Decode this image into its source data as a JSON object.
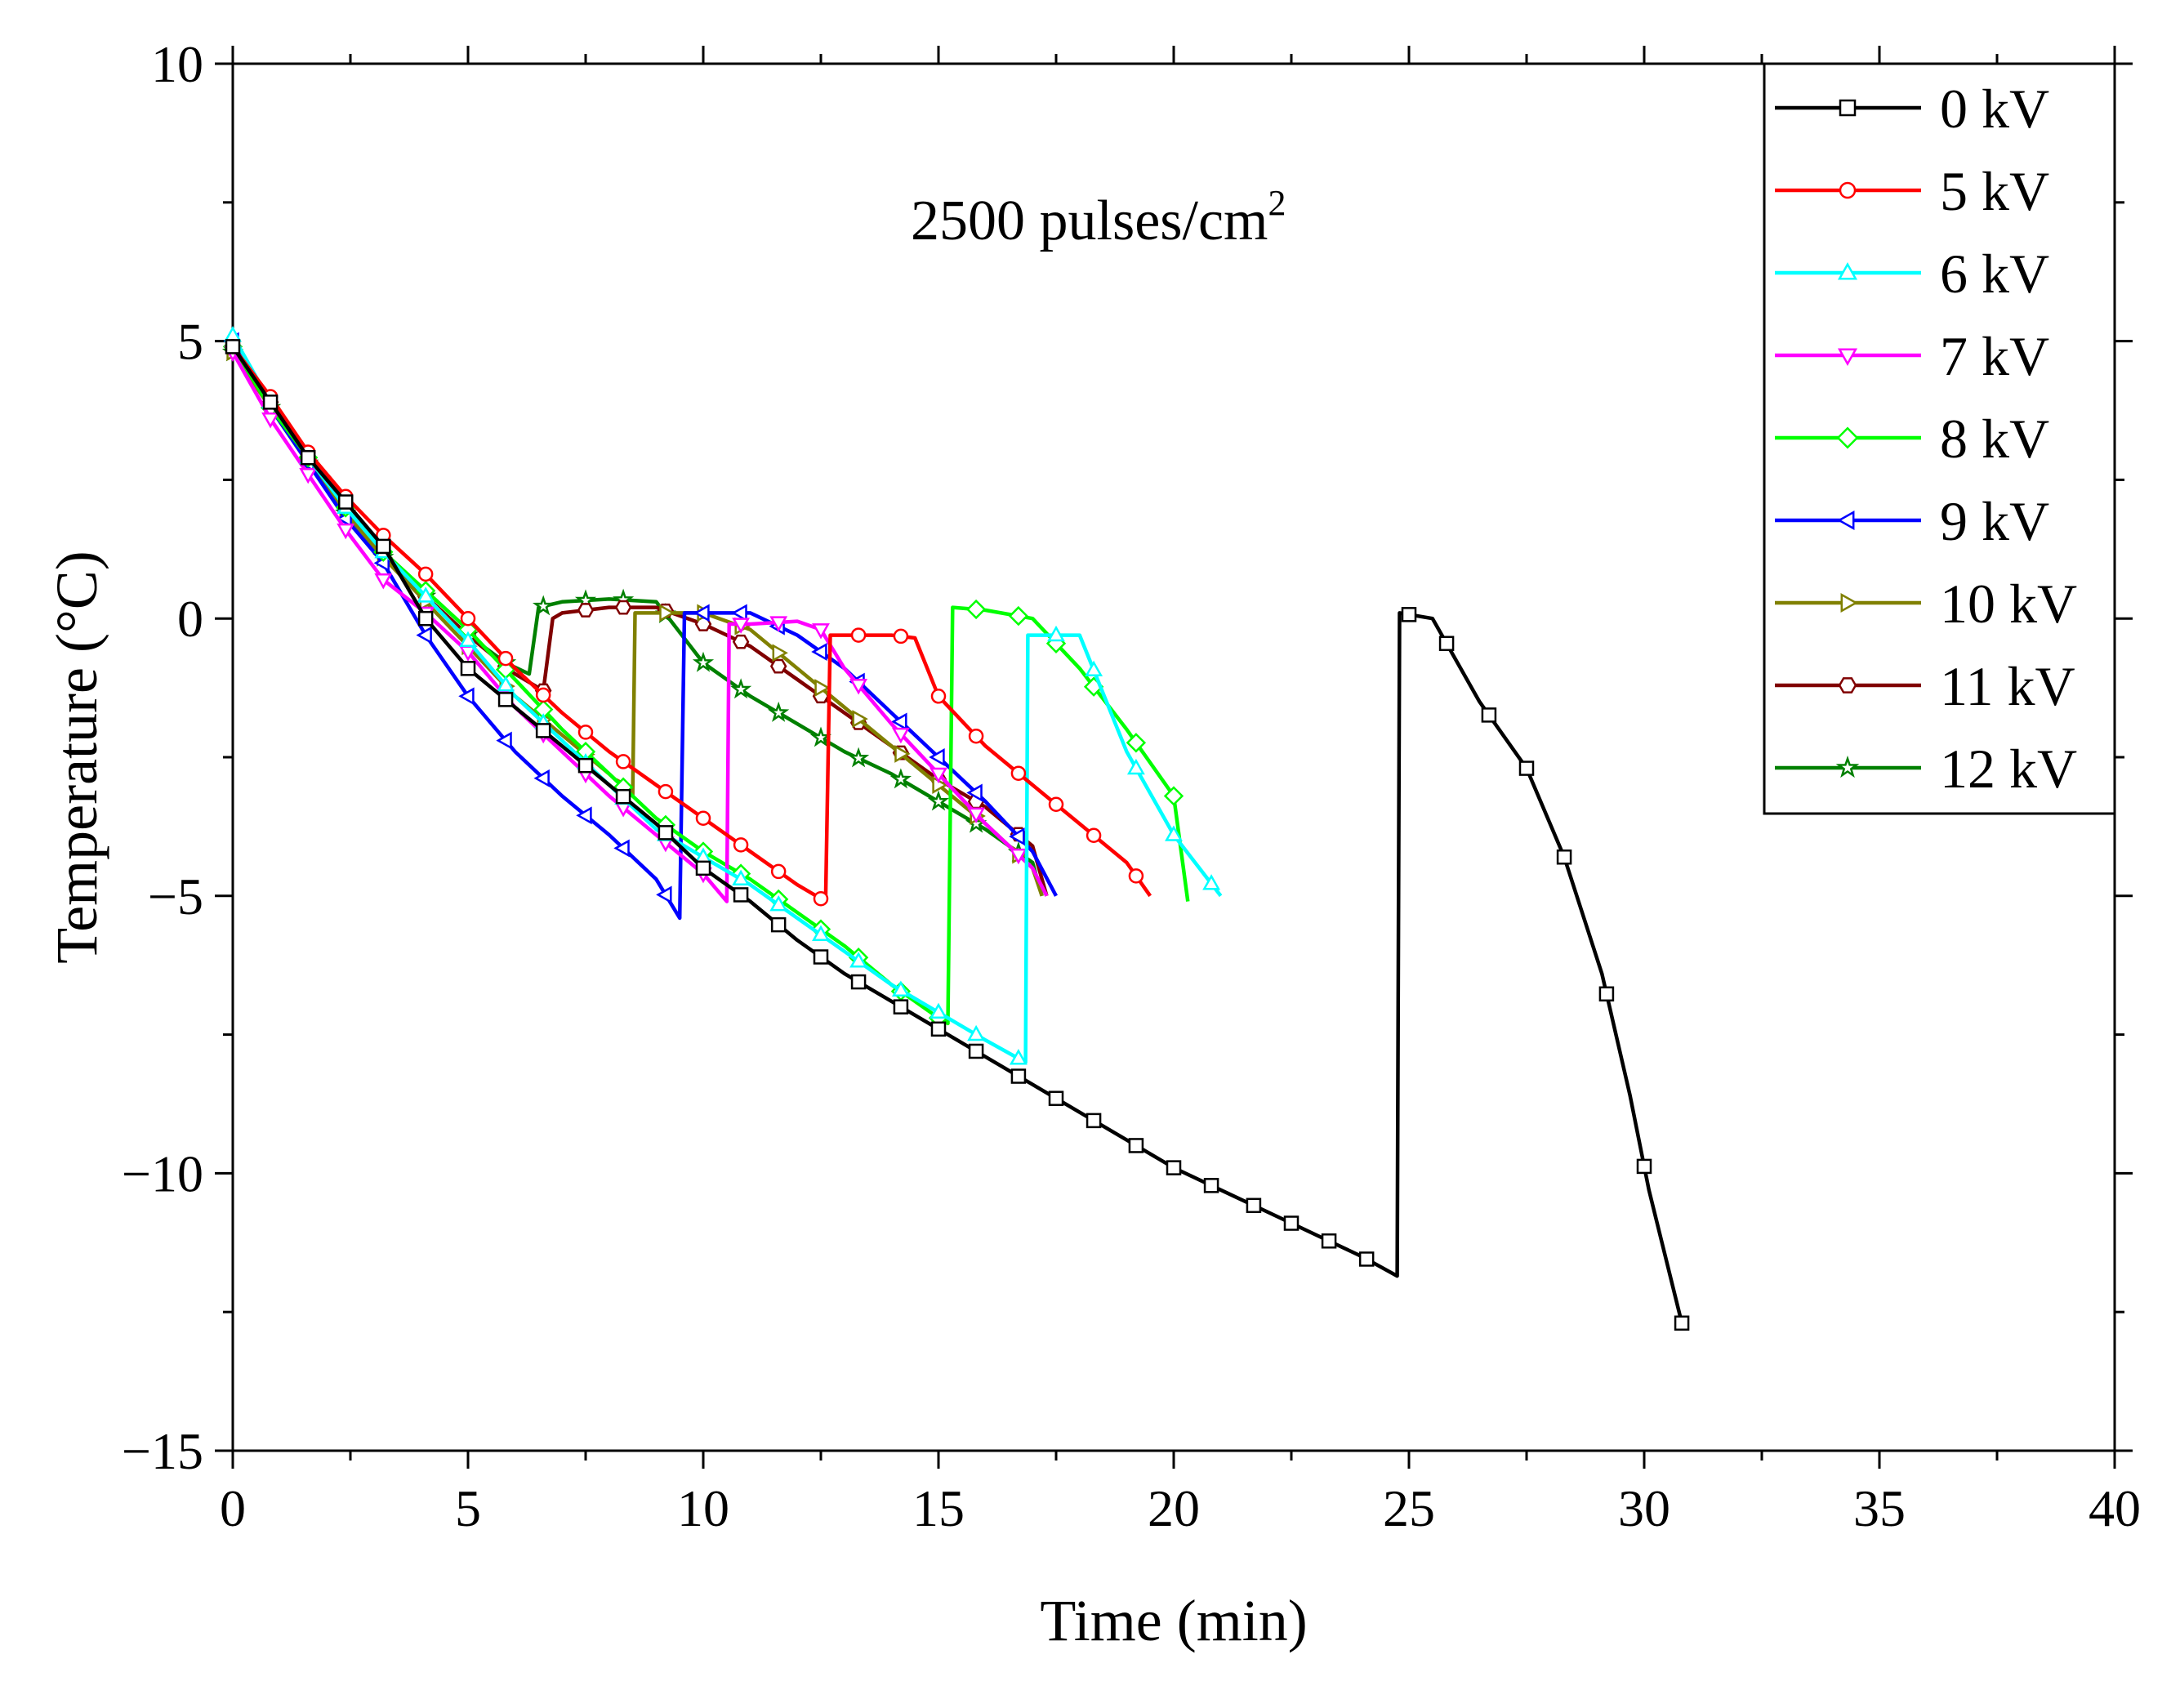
{
  "chart_data": {
    "type": "line",
    "title": "",
    "annotation": "2500 pulses/cm",
    "annotation_superscript": "2",
    "xlabel": "Time (min)",
    "ylabel": "Temperature (°C)",
    "xlim": [
      0,
      40
    ],
    "ylim": [
      -15,
      10
    ],
    "xticks": [
      0,
      5,
      10,
      15,
      20,
      25,
      30,
      35,
      40
    ],
    "xtick_labels": [
      "0",
      "5",
      "10",
      "15",
      "20",
      "25",
      "30",
      "35",
      "40"
    ],
    "yticks": [
      -15,
      -10,
      -5,
      0,
      5,
      10
    ],
    "ytick_labels": [
      "−15",
      "−10",
      "−5",
      "0",
      "5",
      "10"
    ],
    "grid": false,
    "legend_position": "top-right",
    "series": [
      {
        "name": "0 kV",
        "color": "#000000",
        "marker": "square",
        "x": [
          0,
          0.8,
          1.6,
          2.4,
          3.2,
          4.1,
          5,
          6,
          7,
          8,
          9,
          10,
          11,
          12,
          13,
          14,
          15,
          16,
          17,
          18,
          19,
          20,
          21,
          22,
          23,
          24,
          24.75,
          24.8,
          25.5,
          26.5,
          27.5,
          28.3,
          29.1,
          29.7,
          30.1,
          30.8
        ],
        "y": [
          4.9,
          3.9,
          2.9,
          2.1,
          1.3,
          0.0,
          -0.9,
          -1.6,
          -2.3,
          -3.0,
          -3.7,
          -4.5,
          -5.1,
          -5.8,
          -6.4,
          -6.9,
          -7.4,
          -7.9,
          -8.4,
          -8.9,
          -9.4,
          -9.9,
          -10.3,
          -10.7,
          -11.1,
          -11.5,
          -11.85,
          0.1,
          0.0,
          -1.5,
          -2.7,
          -4.3,
          -6.4,
          -8.6,
          -10.3,
          -12.7
        ],
        "marker_x": [
          0,
          0.8,
          1.6,
          2.4,
          3.2,
          4.1,
          5,
          5.8,
          6.6,
          7.5,
          8.3,
          9.2,
          10,
          10.8,
          11.6,
          12.5,
          13.3,
          14.2,
          15,
          15.8,
          16.7,
          17.5,
          18.3,
          19.2,
          20,
          20.8,
          21.7,
          22.5,
          23.3,
          24.1,
          25,
          25.8,
          26.7,
          27.5,
          28.3,
          29.2,
          30,
          30.8
        ]
      },
      {
        "name": "5 kV",
        "color": "#ff0000",
        "marker": "circle",
        "x": [
          0,
          0.8,
          1.6,
          2.4,
          3.2,
          4.1,
          5,
          6,
          7,
          8,
          9,
          10,
          11,
          12,
          12.6,
          12.7,
          13,
          14,
          14.5,
          15,
          16,
          17,
          18,
          19,
          19.5
        ],
        "y": [
          4.9,
          4.0,
          3.0,
          2.2,
          1.5,
          0.8,
          0.0,
          -0.9,
          -1.7,
          -2.4,
          -3.0,
          -3.6,
          -4.2,
          -4.8,
          -5.1,
          -0.3,
          -0.3,
          -0.3,
          -0.35,
          -1.4,
          -2.3,
          -3.0,
          -3.7,
          -4.4,
          -5.0
        ],
        "marker_x": [
          0,
          0.8,
          1.6,
          2.4,
          3.2,
          4.1,
          5,
          5.8,
          6.6,
          7.5,
          8.3,
          9.2,
          10,
          10.8,
          11.6,
          12.5,
          13.3,
          14.2,
          15,
          15.8,
          16.7,
          17.5,
          18.3,
          19.2
        ]
      },
      {
        "name": "6 kV",
        "color": "#00ffff",
        "marker": "triangle-up",
        "x": [
          0,
          0.8,
          1.6,
          2.4,
          3.2,
          4.1,
          5,
          6,
          7,
          8,
          9,
          10,
          11,
          12,
          13,
          14,
          15,
          16,
          16.85,
          16.9,
          17.5,
          18,
          19,
          20,
          21
        ],
        "y": [
          5.1,
          3.9,
          2.9,
          2.0,
          1.2,
          0.4,
          -0.4,
          -1.4,
          -2.2,
          -3.0,
          -3.8,
          -4.3,
          -4.8,
          -5.4,
          -6.0,
          -6.6,
          -7.1,
          -7.6,
          -8.0,
          -0.3,
          -0.3,
          -0.3,
          -2.4,
          -3.9,
          -5.0
        ],
        "marker_x": [
          0,
          0.8,
          1.6,
          2.4,
          3.2,
          4.1,
          5,
          5.8,
          6.6,
          7.5,
          8.3,
          9.2,
          10,
          10.8,
          11.6,
          12.5,
          13.3,
          14.2,
          15,
          15.8,
          16.7,
          17.5,
          18.3,
          19.2,
          20,
          20.8
        ]
      },
      {
        "name": "7 kV",
        "color": "#ff00ff",
        "marker": "triangle-down",
        "x": [
          0,
          0.8,
          1.6,
          2.4,
          3.2,
          4.1,
          5,
          6,
          7,
          8,
          9,
          10,
          10.5,
          10.55,
          11,
          12,
          12.5,
          13,
          14,
          15,
          16,
          17,
          17.3
        ],
        "y": [
          4.8,
          3.6,
          2.6,
          1.6,
          0.7,
          0.1,
          -0.6,
          -1.6,
          -2.4,
          -3.2,
          -3.9,
          -4.6,
          -5.1,
          -0.1,
          -0.1,
          -0.05,
          -0.2,
          -0.9,
          -1.9,
          -2.8,
          -3.7,
          -4.5,
          -5.0
        ],
        "marker_x": [
          0,
          0.8,
          1.6,
          2.4,
          3.2,
          4.1,
          5,
          5.8,
          6.6,
          7.5,
          8.3,
          9.2,
          10,
          10.8,
          11.6,
          12.5,
          13.3,
          14.2,
          15,
          15.8,
          16.7
        ]
      },
      {
        "name": "8 kV",
        "color": "#00ff00",
        "marker": "diamond",
        "x": [
          0,
          0.8,
          1.6,
          2.4,
          3.2,
          4.1,
          5,
          6,
          7,
          8,
          9,
          10,
          11,
          12,
          13,
          14,
          15,
          15.2,
          15.3,
          16,
          17,
          18,
          19,
          20,
          20.3
        ],
        "y": [
          4.9,
          3.8,
          2.9,
          2.0,
          1.2,
          0.5,
          -0.2,
          -1.1,
          -2.0,
          -2.8,
          -3.6,
          -4.2,
          -4.7,
          -5.3,
          -5.9,
          -6.6,
          -7.2,
          -7.3,
          0.2,
          0.15,
          0.0,
          -0.9,
          -2.0,
          -3.2,
          -5.1
        ],
        "marker_x": [
          0,
          0.8,
          1.6,
          2.4,
          3.2,
          4.1,
          5,
          5.8,
          6.6,
          7.5,
          8.3,
          9.2,
          10,
          10.8,
          11.6,
          12.5,
          13.3,
          14.2,
          15,
          15.8,
          16.7,
          17.5,
          18.3,
          19.2,
          20
        ]
      },
      {
        "name": "9 kV",
        "color": "#0000ff",
        "marker": "triangle-left",
        "x": [
          0,
          0.8,
          1.6,
          2.4,
          3.2,
          4.1,
          5,
          6,
          7,
          8,
          9,
          9.5,
          9.6,
          10,
          11,
          12,
          13,
          14,
          15,
          16,
          17,
          17.5
        ],
        "y": [
          5.0,
          3.8,
          2.8,
          1.8,
          1.0,
          -0.3,
          -1.4,
          -2.4,
          -3.2,
          -3.9,
          -4.7,
          -5.4,
          0.1,
          0.1,
          0.1,
          -0.3,
          -0.9,
          -1.7,
          -2.5,
          -3.3,
          -4.2,
          -5.0
        ],
        "marker_x": [
          0,
          0.8,
          1.6,
          2.4,
          3.2,
          4.1,
          5,
          5.8,
          6.6,
          7.5,
          8.3,
          9.2,
          10,
          10.8,
          11.6,
          12.5,
          13.3,
          14.2,
          15,
          15.8,
          16.7
        ]
      },
      {
        "name": "10 kV",
        "color": "#808000",
        "marker": "triangle-right",
        "x": [
          0,
          0.8,
          1.6,
          2.4,
          3.2,
          4.1,
          5,
          6,
          7,
          8,
          8.5,
          8.55,
          9,
          10,
          11,
          12,
          13,
          14,
          15,
          16,
          17,
          17.2
        ],
        "y": [
          4.8,
          3.8,
          2.8,
          1.9,
          1.1,
          0.3,
          -0.5,
          -1.4,
          -2.1,
          -2.8,
          -3.2,
          0.1,
          0.1,
          0.1,
          -0.2,
          -0.9,
          -1.6,
          -2.3,
          -3.0,
          -3.7,
          -4.5,
          -5.0
        ],
        "marker_x": [
          0,
          0.8,
          1.6,
          2.4,
          3.2,
          4.1,
          5,
          5.8,
          6.6,
          7.5,
          8.3,
          9.2,
          10,
          10.8,
          11.6,
          12.5,
          13.3,
          14.2,
          15,
          15.8,
          16.7
        ]
      },
      {
        "name": "11 kV",
        "color": "#800000",
        "marker": "hexagon",
        "x": [
          0,
          0.8,
          1.6,
          2.4,
          3.2,
          4.1,
          5,
          6,
          6.6,
          6.8,
          7,
          8,
          9,
          10,
          11,
          12,
          13,
          14,
          15,
          16,
          17,
          17.3
        ],
        "y": [
          4.9,
          3.9,
          2.9,
          2.0,
          1.2,
          0.4,
          -0.3,
          -1.0,
          -1.3,
          0.0,
          0.1,
          0.2,
          0.2,
          -0.1,
          -0.5,
          -1.1,
          -1.7,
          -2.3,
          -2.9,
          -3.4,
          -4.1,
          -5.0
        ],
        "marker_x": [
          0,
          0.8,
          1.6,
          2.4,
          3.2,
          4.1,
          5,
          5.8,
          6.6,
          7.5,
          8.3,
          9.2,
          10,
          10.8,
          11.6,
          12.5,
          13.3,
          14.2,
          15,
          15.8,
          16.7
        ]
      },
      {
        "name": "12 kV",
        "color": "#008000",
        "marker": "star",
        "x": [
          0,
          0.8,
          1.6,
          2.4,
          3.2,
          4.1,
          5,
          5.8,
          6.3,
          6.5,
          7,
          8,
          9,
          10,
          11,
          12,
          13,
          14,
          15,
          16,
          17,
          17.2
        ],
        "y": [
          4.8,
          3.8,
          2.8,
          1.9,
          1.1,
          0.4,
          -0.3,
          -0.8,
          -1.0,
          0.2,
          0.3,
          0.35,
          0.3,
          -0.8,
          -1.4,
          -1.9,
          -2.4,
          -2.8,
          -3.3,
          -3.8,
          -4.4,
          -5.0
        ],
        "marker_x": [
          0,
          0.8,
          1.6,
          2.4,
          3.2,
          4.1,
          5,
          5.8,
          6.6,
          7.5,
          8.3,
          9.2,
          10,
          10.8,
          11.6,
          12.5,
          13.3,
          14.2,
          15,
          15.8,
          16.7
        ]
      }
    ]
  }
}
